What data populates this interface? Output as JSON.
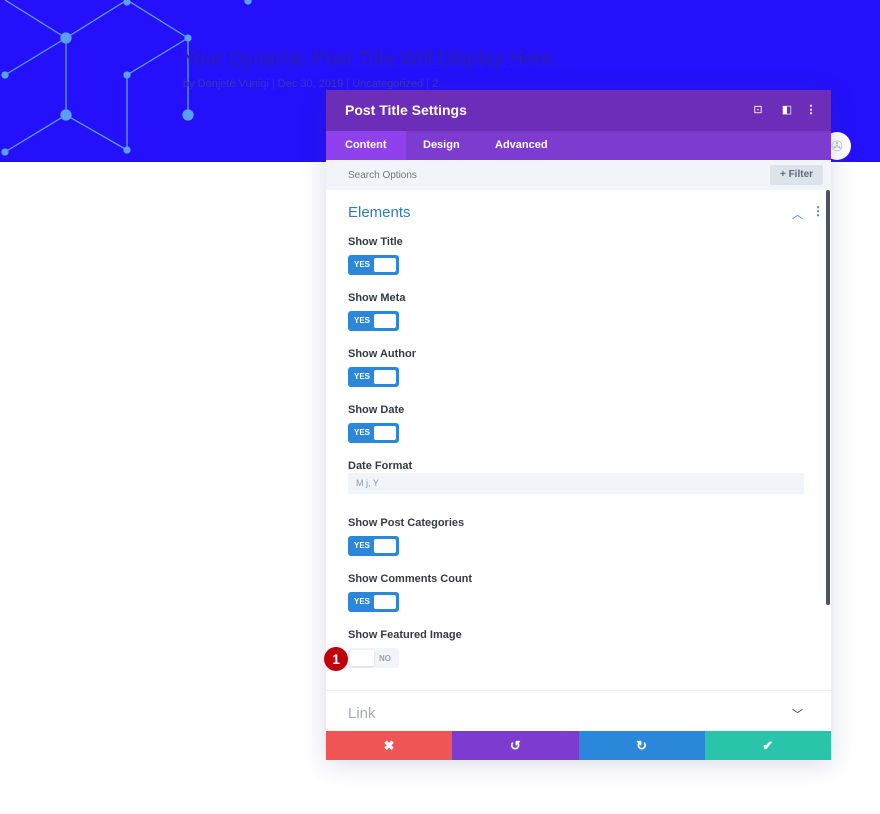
{
  "hero": {
    "post_title": "Your Dynamic Post Title Will Display Here",
    "post_meta": "by Donjetë Vuniqi | Dec 30, 2019 | Uncategorized | 2",
    "background_color": "#2410fa"
  },
  "panel": {
    "title": "Post Title Settings",
    "header_icons": [
      "focus-icon",
      "split-view-icon",
      "more-vertical-icon"
    ],
    "tabs": [
      {
        "label": "Content",
        "active": true
      },
      {
        "label": "Design",
        "active": false
      },
      {
        "label": "Advanced",
        "active": false
      }
    ],
    "search_placeholder": "Search Options",
    "filter_label": "+ Filter",
    "section_title": "Elements",
    "fields": [
      {
        "label": "Show Title",
        "type": "toggle",
        "value": "YES"
      },
      {
        "label": "Show Meta",
        "type": "toggle",
        "value": "YES"
      },
      {
        "label": "Show Author",
        "type": "toggle",
        "value": "YES"
      },
      {
        "label": "Show Date",
        "type": "toggle",
        "value": "YES"
      },
      {
        "label": "Date Format",
        "type": "text",
        "value": "M j, Y"
      },
      {
        "label": "Show Post Categories",
        "type": "toggle",
        "value": "YES"
      },
      {
        "label": "Show Comments Count",
        "type": "toggle",
        "value": "YES"
      },
      {
        "label": "Show Featured Image",
        "type": "toggle",
        "value": "NO"
      }
    ],
    "step_badge": "1",
    "link_section_title": "Link",
    "footer_buttons": [
      {
        "name": "cancel",
        "glyph": "✖",
        "color": "#ef5555"
      },
      {
        "name": "undo",
        "glyph": "↺",
        "color": "#7e3bd0"
      },
      {
        "name": "redo",
        "glyph": "↻",
        "color": "#2b87da"
      },
      {
        "name": "save",
        "glyph": "✔",
        "color": "#29c4a9"
      }
    ]
  },
  "colors": {
    "header": "#6c2eb9",
    "tabs": "#7e3bd0",
    "active_tab": "#8f42ec",
    "toggle_on": "#2b87da",
    "section_title": "#2e7ebd"
  }
}
